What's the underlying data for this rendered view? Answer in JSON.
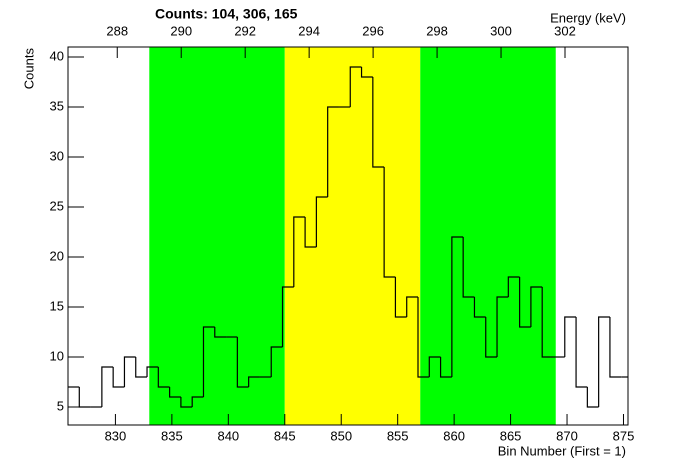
{
  "chart_data": {
    "type": "histogram",
    "title": "Counts:   104,   306,   165",
    "x_label": "Bin Number (First = 1)",
    "y_label": "Counts",
    "x2_label": "Energy (keV)",
    "bins": [
      825.8,
      826.8,
      827.8,
      828.8,
      829.8,
      830.8,
      831.8,
      832.8,
      833.8,
      834.8,
      835.8,
      836.8,
      837.8,
      838.8,
      839.8,
      840.8,
      841.8,
      842.8,
      843.8,
      844.8,
      845.8,
      846.8,
      847.8,
      848.8,
      849.8,
      850.8,
      851.8,
      852.8,
      853.8,
      854.8,
      855.8,
      856.8,
      857.8,
      858.8,
      859.8,
      860.8,
      861.8,
      862.8,
      863.8,
      864.8,
      865.8,
      866.8,
      867.8,
      868.8,
      869.8,
      870.8,
      871.8,
      872.8,
      873.8,
      874.8,
      875.8
    ],
    "values": [
      7,
      5,
      5,
      9,
      7,
      10,
      8,
      9,
      7,
      6,
      5,
      6,
      13,
      12,
      12,
      7,
      8,
      8,
      11,
      17,
      24,
      21,
      26,
      35,
      35,
      39,
      38,
      29,
      18,
      14,
      16,
      8,
      10,
      8,
      22,
      16,
      14,
      10,
      16,
      18,
      13,
      17,
      10,
      10,
      14,
      7,
      5,
      14,
      8,
      8
    ],
    "color": "#000000",
    "bands": [
      {
        "range": [
          833,
          845
        ],
        "color": "#00ff00"
      },
      {
        "range": [
          845,
          857
        ],
        "color": "#ffff00"
      },
      {
        "range": [
          857,
          869
        ],
        "color": "#00ff00"
      }
    ],
    "xlim": [
      825.8,
      875.4
    ],
    "xticks": [
      830,
      835,
      840,
      845,
      850,
      855,
      860,
      865,
      870,
      875
    ],
    "ylim": [
      3.2,
      41
    ],
    "yticks": [
      5,
      10,
      15,
      20,
      25,
      30,
      35,
      40
    ],
    "x2lim": [
      286.46,
      303.97
    ],
    "x2ticks": [
      288,
      290,
      292,
      294,
      296,
      298,
      300,
      302
    ]
  }
}
